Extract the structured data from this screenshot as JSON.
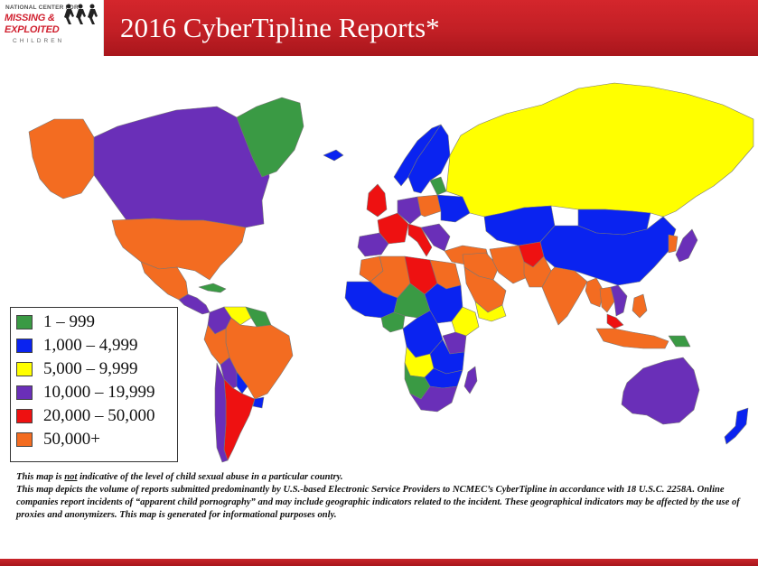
{
  "header": {
    "title": "2016 CyberTipline Reports*",
    "logo": {
      "line1": "NATIONAL CENTER FOR",
      "line2": "MISSING &",
      "line3": "EXPLOITED",
      "line4": "CHILDREN"
    },
    "bar_color": "#c8232a"
  },
  "legend": {
    "items": [
      {
        "label": "1 – 999",
        "color": "#3a9a44"
      },
      {
        "label": "1,000 – 4,999",
        "color": "#0a23f0"
      },
      {
        "label": "5,000 – 9,999",
        "color": "#ffff00"
      },
      {
        "label": "10,000 – 19,999",
        "color": "#6a2fb8"
      },
      {
        "label": "20,000 – 50,000",
        "color": "#ee1111"
      },
      {
        "label": "50,000+",
        "color": "#f36c21"
      }
    ]
  },
  "notes": {
    "line1_pre": "This map is ",
    "line1_emph": "not",
    "line1_post": " indicative of the level of child sexual abuse in a particular country.",
    "line2": "This map depicts  the volume of reports submitted predominantly by U.S.-based Electronic Service Providers to NCMEC’s CyberTipline in accordance with 18 U.S.C. 2258A.  Online companies report incidents of “apparent child pornography” and may include geographic indicators related to the incident. These geographical indicators may be affected by the use of proxies and anonymizers. This map is generated for informational purposes only."
  },
  "map": {
    "colors": {
      "green": "#3a9a44",
      "blue": "#0a23f0",
      "yellow": "#ffff00",
      "purple": "#6a2fb8",
      "red": "#ee1111",
      "orange": "#f36c21",
      "border": "#777777"
    },
    "regions": [
      {
        "name": "alaska",
        "category": "orange"
      },
      {
        "name": "canada",
        "category": "purple"
      },
      {
        "name": "usa",
        "category": "orange"
      },
      {
        "name": "greenland",
        "category": "green"
      },
      {
        "name": "mexico",
        "category": "orange"
      },
      {
        "name": "central-america",
        "category": "purple"
      },
      {
        "name": "cuba",
        "category": "green"
      },
      {
        "name": "colombia",
        "category": "purple"
      },
      {
        "name": "venezuela",
        "category": "yellow"
      },
      {
        "name": "guianas",
        "category": "green"
      },
      {
        "name": "brazil",
        "category": "orange"
      },
      {
        "name": "peru",
        "category": "orange"
      },
      {
        "name": "bolivia",
        "category": "purple"
      },
      {
        "name": "argentina",
        "category": "red"
      },
      {
        "name": "chile",
        "category": "purple"
      },
      {
        "name": "uruguay",
        "category": "blue"
      },
      {
        "name": "paraguay",
        "category": "blue"
      },
      {
        "name": "iceland",
        "category": "blue"
      },
      {
        "name": "norway",
        "category": "blue"
      },
      {
        "name": "sweden-finland",
        "category": "blue"
      },
      {
        "name": "united-kingdom",
        "category": "red"
      },
      {
        "name": "france",
        "category": "red"
      },
      {
        "name": "spain",
        "category": "purple"
      },
      {
        "name": "germany",
        "category": "purple"
      },
      {
        "name": "italy",
        "category": "red"
      },
      {
        "name": "poland",
        "category": "orange"
      },
      {
        "name": "baltics",
        "category": "green"
      },
      {
        "name": "balkans",
        "category": "purple"
      },
      {
        "name": "ukraine",
        "category": "blue"
      },
      {
        "name": "turkey",
        "category": "orange"
      },
      {
        "name": "russia",
        "category": "yellow"
      },
      {
        "name": "kazakhstan",
        "category": "blue"
      },
      {
        "name": "mongolia",
        "category": "blue"
      },
      {
        "name": "china",
        "category": "blue"
      },
      {
        "name": "iran",
        "category": "orange"
      },
      {
        "name": "iraq-syria",
        "category": "orange"
      },
      {
        "name": "saudi-arabia",
        "category": "orange"
      },
      {
        "name": "yemen",
        "category": "yellow"
      },
      {
        "name": "afghanistan",
        "category": "red"
      },
      {
        "name": "pakistan",
        "category": "orange"
      },
      {
        "name": "india",
        "category": "orange"
      },
      {
        "name": "myanmar",
        "category": "orange"
      },
      {
        "name": "thailand",
        "category": "orange"
      },
      {
        "name": "vietnam",
        "category": "purple"
      },
      {
        "name": "korea",
        "category": "orange"
      },
      {
        "name": "japan",
        "category": "purple"
      },
      {
        "name": "philippines",
        "category": "orange"
      },
      {
        "name": "malaysia",
        "category": "red"
      },
      {
        "name": "indonesia",
        "category": "orange"
      },
      {
        "name": "papua",
        "category": "green"
      },
      {
        "name": "australia",
        "category": "purple"
      },
      {
        "name": "new-zealand",
        "category": "blue"
      },
      {
        "name": "morocco",
        "category": "orange"
      },
      {
        "name": "algeria",
        "category": "orange"
      },
      {
        "name": "libya",
        "category": "red"
      },
      {
        "name": "egypt",
        "category": "orange"
      },
      {
        "name": "west-africa",
        "category": "blue"
      },
      {
        "name": "nigeria",
        "category": "green"
      },
      {
        "name": "chad-niger",
        "category": "green"
      },
      {
        "name": "sudan",
        "category": "blue"
      },
      {
        "name": "ethiopia",
        "category": "yellow"
      },
      {
        "name": "kenya",
        "category": "purple"
      },
      {
        "name": "central-africa",
        "category": "blue"
      },
      {
        "name": "tanzania",
        "category": "blue"
      },
      {
        "name": "angola",
        "category": "yellow"
      },
      {
        "name": "zambia",
        "category": "blue"
      },
      {
        "name": "namibia",
        "category": "green"
      },
      {
        "name": "south-africa",
        "category": "purple"
      },
      {
        "name": "madagascar",
        "category": "purple"
      }
    ]
  }
}
